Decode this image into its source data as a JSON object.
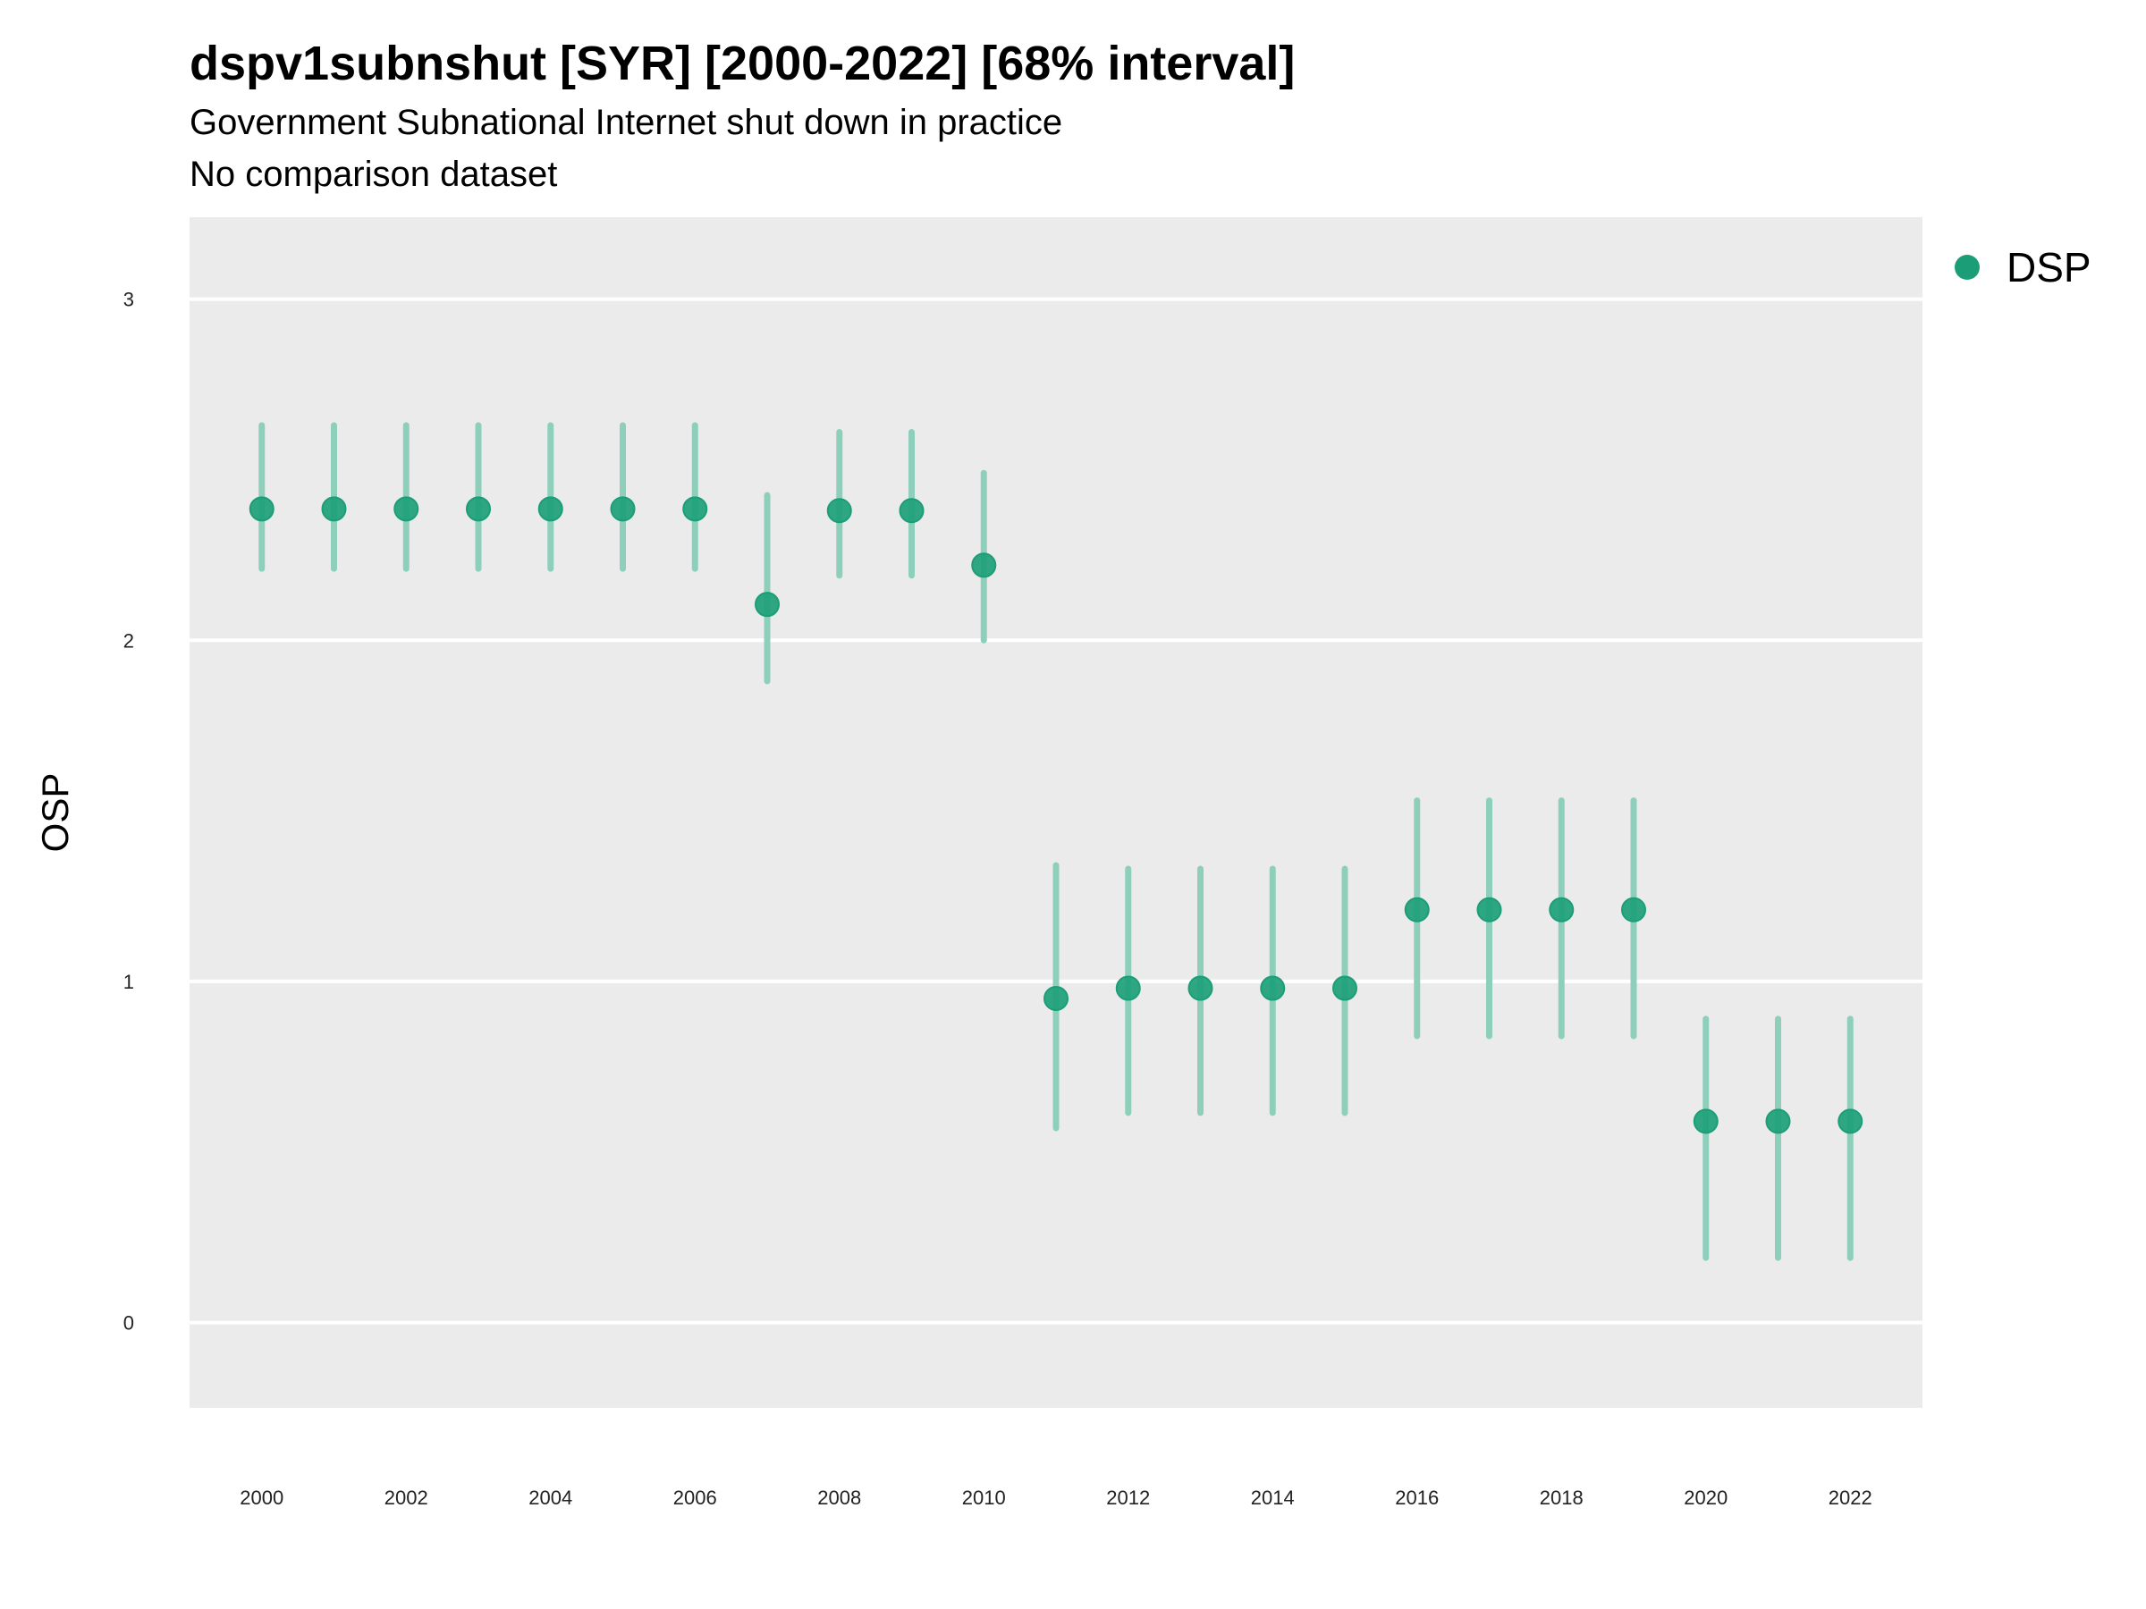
{
  "chart_data": {
    "type": "scatter",
    "title": "dspv1subnshut [SYR] [2000-2022] [68% interval]",
    "subtitle": "Government Subnational Internet shut down in practice",
    "caption": "No comparison dataset",
    "xlabel": "",
    "ylabel": "OSP",
    "xlim": [
      1999,
      2023
    ],
    "ylim": [
      -0.25,
      3.24
    ],
    "x_ticks": [
      "2000",
      "2002",
      "2004",
      "2006",
      "2008",
      "2010",
      "2012",
      "2014",
      "2016",
      "2018",
      "2020",
      "2022"
    ],
    "y_ticks": [
      "0",
      "1",
      "2",
      "3"
    ],
    "grid": true,
    "legend": {
      "position": "right",
      "entries": [
        "DSP"
      ]
    },
    "colors": {
      "point": "#1b9e77",
      "interval": "#8ecfbb",
      "panel": "#ebebeb",
      "grid": "#ffffff"
    },
    "series": [
      {
        "name": "DSP",
        "x": [
          2000,
          2001,
          2002,
          2003,
          2004,
          2005,
          2006,
          2007,
          2008,
          2009,
          2010,
          2011,
          2012,
          2013,
          2014,
          2015,
          2016,
          2017,
          2018,
          2019,
          2020,
          2021,
          2022
        ],
        "y": [
          2.385,
          2.385,
          2.385,
          2.385,
          2.385,
          2.385,
          2.385,
          2.105,
          2.38,
          2.38,
          2.22,
          0.95,
          0.98,
          0.98,
          0.98,
          0.98,
          1.21,
          1.21,
          1.21,
          1.21,
          0.59,
          0.59,
          0.59
        ],
        "lower": [
          2.21,
          2.21,
          2.21,
          2.21,
          2.21,
          2.21,
          2.21,
          1.88,
          2.19,
          2.19,
          2.0,
          0.57,
          0.615,
          0.615,
          0.615,
          0.615,
          0.84,
          0.84,
          0.84,
          0.84,
          0.19,
          0.19,
          0.19
        ],
        "upper": [
          2.63,
          2.63,
          2.63,
          2.63,
          2.63,
          2.63,
          2.63,
          2.425,
          2.61,
          2.61,
          2.49,
          1.34,
          1.33,
          1.33,
          1.33,
          1.33,
          1.53,
          1.53,
          1.53,
          1.53,
          0.89,
          0.89,
          0.89
        ]
      }
    ]
  }
}
